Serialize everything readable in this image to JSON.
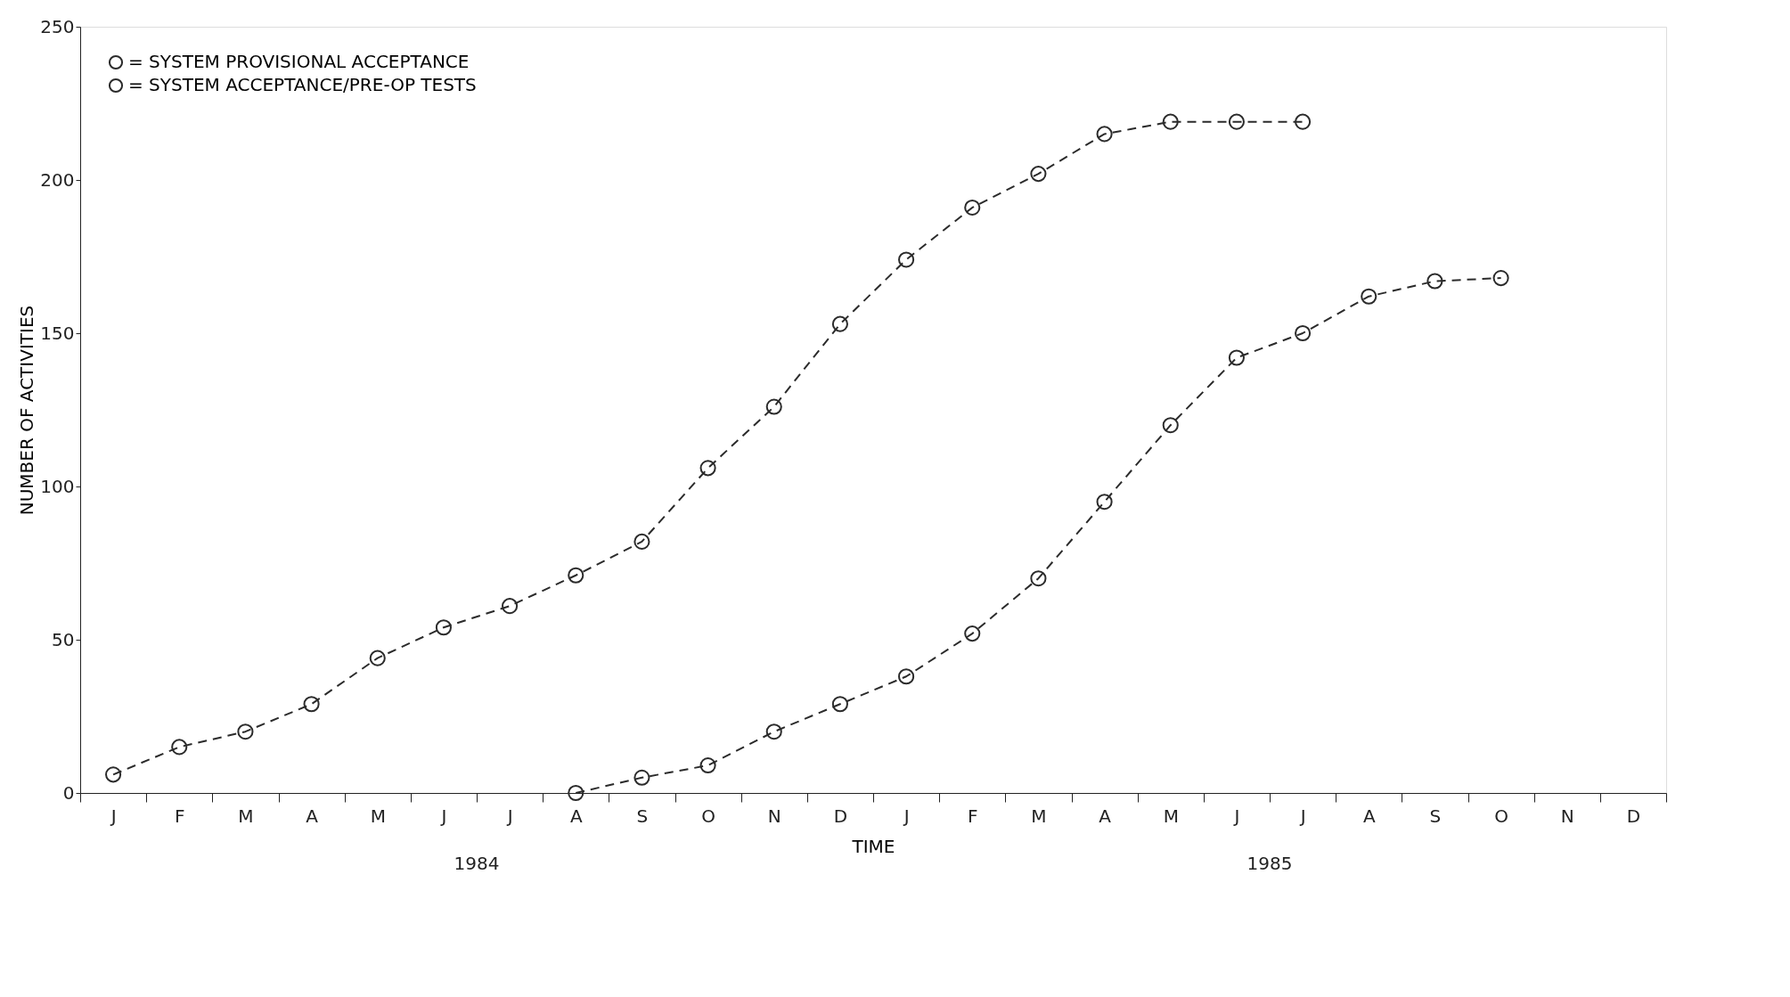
{
  "chart_data": {
    "type": "line",
    "xlabel": "TIME",
    "ylabel": "NUMBER OF ACTIVITIES",
    "categories": [
      "J",
      "F",
      "M",
      "A",
      "M",
      "J",
      "J",
      "A",
      "S",
      "O",
      "N",
      "D",
      "J",
      "F",
      "M",
      "A",
      "M",
      "J",
      "J",
      "A",
      "S",
      "O",
      "N",
      "D"
    ],
    "ylim": [
      0,
      250
    ],
    "yticks": [
      0,
      50,
      100,
      150,
      200,
      250
    ],
    "series": [
      {
        "name": "= SYSTEM PROVISIONAL ACCEPTANCE",
        "color": "#2b2b2b",
        "values": [
          6,
          15,
          20,
          29,
          44,
          54,
          61,
          71,
          82,
          106,
          126,
          153,
          174,
          191,
          202,
          215,
          219,
          219,
          219,
          null,
          null,
          null,
          null,
          null
        ]
      },
      {
        "name": "= SYSTEM ACCEPTANCE/PRE-OP TESTS",
        "color": "#2b2b2b",
        "values": [
          null,
          null,
          null,
          null,
          null,
          null,
          null,
          0,
          5,
          9,
          20,
          29,
          38,
          52,
          70,
          95,
          120,
          142,
          150,
          162,
          167,
          168,
          null,
          null
        ]
      }
    ],
    "annotations": [
      "1984",
      "1985"
    ],
    "marker": "circle",
    "line_style": "dashed",
    "legend": "top left",
    "grid": false
  }
}
